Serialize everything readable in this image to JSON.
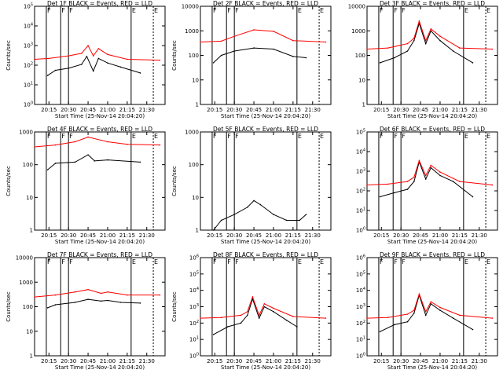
{
  "chart_data": [
    {
      "type": "line",
      "title": "Det 1F BLACK = Events, RED = LLD",
      "ylabel": "Counts/sec",
      "xlabel": "Start Time (25-Nov-14 20:04:20)",
      "x_ticks": [
        "20:15",
        "20:30",
        "20:45",
        "21:00",
        "21:15",
        "21:30"
      ],
      "y_scale": "log",
      "ylim": [
        1,
        100000
      ],
      "y_ticks": [
        "10^0",
        "10^1",
        "10^2",
        "10^3",
        "10^4",
        "10^5"
      ],
      "flags": [
        {
          "label": "F",
          "time": "20:13"
        },
        {
          "label": "F",
          "time": "20:24"
        },
        {
          "label": "F",
          "time": "20:30"
        },
        {
          "label": "E",
          "time": "21:18"
        },
        {
          "label": "E",
          "time": "21:35"
        }
      ],
      "series": [
        {
          "name": "Events",
          "color": "#000000",
          "x": [
            "20:14",
            "20:20",
            "20:30",
            "20:40",
            "20:44",
            "20:49",
            "20:53",
            "21:00",
            "21:10",
            "21:25"
          ],
          "y": [
            30,
            55,
            70,
            110,
            280,
            50,
            220,
            130,
            80,
            40
          ]
        },
        {
          "name": "LLD",
          "color": "#ff0000",
          "x": [
            "20:04",
            "20:15",
            "20:30",
            "20:40",
            "20:45",
            "20:49",
            "20:53",
            "21:00",
            "21:15",
            "21:40"
          ],
          "y": [
            200,
            220,
            300,
            400,
            1000,
            300,
            700,
            350,
            200,
            180
          ]
        }
      ]
    },
    {
      "type": "line",
      "title": "Det 2F BLACK = Events, RED = LLD",
      "ylabel": "Counts/sec",
      "xlabel": "Start Time (25-Nov-14 20:04:20)",
      "x_ticks": [
        "20:15",
        "20:30",
        "20:45",
        "21:00",
        "21:15",
        "21:30"
      ],
      "y_scale": "log",
      "ylim": [
        1,
        10000
      ],
      "y_ticks": [
        "1",
        "10",
        "100",
        "1000",
        "10000"
      ],
      "flags": [
        {
          "label": "F",
          "time": "20:13"
        },
        {
          "label": "F",
          "time": "20:24"
        },
        {
          "label": "F",
          "time": "20:30"
        },
        {
          "label": "E",
          "time": "21:18"
        },
        {
          "label": "E",
          "time": "21:35"
        }
      ],
      "series": [
        {
          "name": "Events",
          "color": "#000000",
          "x": [
            "20:14",
            "20:20",
            "20:30",
            "20:45",
            "21:00",
            "21:15",
            "21:25"
          ],
          "y": [
            50,
            100,
            150,
            200,
            180,
            90,
            80
          ]
        },
        {
          "name": "LLD",
          "color": "#ff0000",
          "x": [
            "20:04",
            "20:20",
            "20:30",
            "20:45",
            "21:00",
            "21:15",
            "21:40"
          ],
          "y": [
            350,
            380,
            600,
            1100,
            950,
            400,
            350
          ]
        }
      ]
    },
    {
      "type": "line",
      "title": "Det 3F BLACK = Events, RED = LLD",
      "ylabel": "",
      "xlabel": "Start Time (25-Nov-14 20:04:20)",
      "x_ticks": [
        "20:15",
        "20:30",
        "20:45",
        "21:00",
        "21:15",
        "21:30"
      ],
      "y_scale": "log",
      "ylim": [
        1,
        10000
      ],
      "y_ticks": [
        "1",
        "10",
        "100",
        "1000",
        "10000"
      ],
      "flags": [
        {
          "label": "F",
          "time": "20:13"
        },
        {
          "label": "F",
          "time": "20:24"
        },
        {
          "label": "F",
          "time": "20:30"
        },
        {
          "label": "E",
          "time": "21:18"
        },
        {
          "label": "E",
          "time": "21:35"
        }
      ],
      "series": [
        {
          "name": "Events",
          "color": "#000000",
          "x": [
            "20:14",
            "20:25",
            "20:35",
            "20:40",
            "20:44",
            "20:49",
            "20:53",
            "21:00",
            "21:10",
            "21:25"
          ],
          "y": [
            50,
            80,
            150,
            400,
            2000,
            300,
            1000,
            400,
            150,
            50
          ]
        },
        {
          "name": "LLD",
          "color": "#ff0000",
          "x": [
            "20:04",
            "20:20",
            "20:35",
            "20:40",
            "20:44",
            "20:49",
            "20:53",
            "21:00",
            "21:15",
            "21:40"
          ],
          "y": [
            180,
            200,
            300,
            500,
            2500,
            400,
            1200,
            600,
            200,
            180
          ]
        }
      ]
    },
    {
      "type": "line",
      "title": "Det 4F BLACK = Events, RED = LLD",
      "ylabel": "Counts/sec",
      "xlabel": "Start Time (25-Nov-14 20:04:20)",
      "x_ticks": [
        "20:15",
        "20:30",
        "20:45",
        "21:00",
        "21:15",
        "21:30"
      ],
      "y_scale": "log",
      "ylim": [
        1,
        1000
      ],
      "y_ticks": [
        "1",
        "10",
        "100",
        "1000"
      ],
      "flags": [
        {
          "label": "F",
          "time": "20:13"
        },
        {
          "label": "F",
          "time": "20:24"
        },
        {
          "label": "F",
          "time": "20:30"
        },
        {
          "label": "E",
          "time": "21:18"
        },
        {
          "label": "E",
          "time": "21:35"
        }
      ],
      "series": [
        {
          "name": "Events",
          "color": "#000000",
          "x": [
            "20:14",
            "20:20",
            "20:35",
            "20:45",
            "20:50",
            "21:00",
            "21:25"
          ],
          "y": [
            70,
            110,
            120,
            200,
            130,
            140,
            120
          ]
        },
        {
          "name": "LLD",
          "color": "#ff0000",
          "x": [
            "20:04",
            "20:20",
            "20:35",
            "20:45",
            "21:00",
            "21:15",
            "21:40"
          ],
          "y": [
            350,
            400,
            500,
            700,
            500,
            420,
            400
          ]
        }
      ]
    },
    {
      "type": "line",
      "title": "Det 5F BLACK = Events, RED = LLD",
      "ylabel": "Counts/sec",
      "xlabel": "Start Time (25-Nov-14 20:04:20)",
      "x_ticks": [
        "20:15",
        "20:30",
        "20:45",
        "21:00",
        "21:15",
        "21:30"
      ],
      "y_scale": "log",
      "ylim": [
        1,
        1000
      ],
      "y_ticks": [
        "1",
        "10",
        "100",
        "1000"
      ],
      "flags": [
        {
          "label": "F",
          "time": "20:13"
        },
        {
          "label": "F",
          "time": "20:24"
        },
        {
          "label": "F",
          "time": "20:30"
        },
        {
          "label": "E",
          "time": "21:18"
        },
        {
          "label": "E",
          "time": "21:35"
        }
      ],
      "series": [
        {
          "name": "Events",
          "color": "#000000",
          "x": [
            "20:14",
            "20:20",
            "20:30",
            "20:40",
            "20:45",
            "20:50",
            "21:00",
            "21:10",
            "21:20",
            "21:25"
          ],
          "y": [
            1,
            2,
            3,
            5,
            8,
            6,
            3,
            2,
            2,
            3
          ]
        }
      ]
    },
    {
      "type": "line",
      "title": "Det 6F BLACK = Events, RED = LLD",
      "ylabel": "",
      "xlabel": "Start Time (25-Nov-14 20:04:20)",
      "x_ticks": [
        "20:15",
        "20:30",
        "20:45",
        "21:00",
        "21:15",
        "21:30"
      ],
      "y_scale": "log",
      "ylim": [
        1,
        100000
      ],
      "y_ticks": [
        "10^0",
        "10^1",
        "10^2",
        "10^3",
        "10^4",
        "10^5"
      ],
      "flags": [
        {
          "label": "F",
          "time": "20:13"
        },
        {
          "label": "F",
          "time": "20:24"
        },
        {
          "label": "F",
          "time": "20:30"
        },
        {
          "label": "E",
          "time": "21:18"
        },
        {
          "label": "E",
          "time": "21:35"
        }
      ],
      "series": [
        {
          "name": "Events",
          "color": "#000000",
          "x": [
            "20:14",
            "20:25",
            "20:35",
            "20:40",
            "20:44",
            "20:49",
            "20:53",
            "21:00",
            "21:10",
            "21:25"
          ],
          "y": [
            50,
            80,
            120,
            300,
            3000,
            400,
            1500,
            600,
            300,
            50
          ]
        },
        {
          "name": "LLD",
          "color": "#ff0000",
          "x": [
            "20:04",
            "20:20",
            "20:35",
            "20:40",
            "20:44",
            "20:49",
            "20:53",
            "21:00",
            "21:15",
            "21:40"
          ],
          "y": [
            200,
            220,
            300,
            500,
            3500,
            600,
            2000,
            900,
            300,
            200
          ]
        }
      ]
    },
    {
      "type": "line",
      "title": "Det 7F BLACK = Events, RED = LLD",
      "ylabel": "Counts/sec",
      "xlabel": "Start Time (25-Nov-14 20:04:20)",
      "x_ticks": [
        "20:15",
        "20:30",
        "20:45",
        "21:00",
        "21:15",
        "21:30"
      ],
      "y_scale": "log",
      "ylim": [
        1,
        10000
      ],
      "y_ticks": [
        "1",
        "10",
        "100",
        "1000",
        "10000"
      ],
      "flags": [
        {
          "label": "F",
          "time": "20:13"
        },
        {
          "label": "F",
          "time": "20:24"
        },
        {
          "label": "F",
          "time": "20:30"
        },
        {
          "label": "E",
          "time": "21:18"
        },
        {
          "label": "E",
          "time": "21:35"
        }
      ],
      "series": [
        {
          "name": "Events",
          "color": "#000000",
          "x": [
            "20:14",
            "20:20",
            "20:35",
            "20:45",
            "20:55",
            "21:00",
            "21:10",
            "21:25"
          ],
          "y": [
            90,
            120,
            150,
            200,
            170,
            180,
            150,
            140
          ]
        },
        {
          "name": "LLD",
          "color": "#ff0000",
          "x": [
            "20:04",
            "20:20",
            "20:35",
            "20:45",
            "20:55",
            "21:00",
            "21:15",
            "21:40"
          ],
          "y": [
            250,
            300,
            400,
            500,
            350,
            400,
            300,
            300
          ]
        }
      ]
    },
    {
      "type": "line",
      "title": "Det 8F BLACK = Events, RED = LLD",
      "ylabel": "Counts/sec",
      "xlabel": "Start Time (25-Nov-14 20:04:20)",
      "x_ticks": [
        "20:15",
        "20:30",
        "20:45",
        "21:00",
        "21:15",
        "21:30"
      ],
      "y_scale": "log",
      "ylim": [
        1,
        1000000
      ],
      "y_ticks": [
        "10^0",
        "10^1",
        "10^2",
        "10^3",
        "10^4",
        "10^5",
        "10^6"
      ],
      "flags": [
        {
          "label": "F",
          "time": "20:13"
        },
        {
          "label": "F",
          "time": "20:24"
        },
        {
          "label": "F",
          "time": "20:30"
        },
        {
          "label": "E",
          "time": "21:18"
        },
        {
          "label": "E",
          "time": "21:35"
        }
      ],
      "series": [
        {
          "name": "Events",
          "color": "#000000",
          "x": [
            "20:14",
            "20:25",
            "20:35",
            "20:40",
            "20:44",
            "20:49",
            "20:53",
            "21:00",
            "21:10",
            "21:18"
          ],
          "y": [
            20,
            60,
            100,
            300,
            3000,
            200,
            1000,
            500,
            150,
            60
          ]
        },
        {
          "name": "LLD",
          "color": "#ff0000",
          "x": [
            "20:04",
            "20:20",
            "20:35",
            "20:40",
            "20:44",
            "20:49",
            "20:53",
            "21:00",
            "21:15",
            "21:40"
          ],
          "y": [
            200,
            220,
            300,
            500,
            4000,
            300,
            1500,
            800,
            250,
            200
          ]
        }
      ]
    },
    {
      "type": "line",
      "title": "Det 9F BLACK = Events, RED = LLD",
      "ylabel": "",
      "xlabel": "Start Time (25-Nov-14 20:04:20)",
      "x_ticks": [
        "20:15",
        "20:30",
        "20:45",
        "21:00",
        "21:15",
        "21:30"
      ],
      "y_scale": "log",
      "ylim": [
        1,
        1000000
      ],
      "y_ticks": [
        "10^0",
        "10^1",
        "10^2",
        "10^3",
        "10^4",
        "10^5",
        "10^6"
      ],
      "flags": [
        {
          "label": "F",
          "time": "20:13"
        },
        {
          "label": "F",
          "time": "20:24"
        },
        {
          "label": "F",
          "time": "20:30"
        },
        {
          "label": "E",
          "time": "21:18"
        },
        {
          "label": "E",
          "time": "21:35"
        }
      ],
      "series": [
        {
          "name": "Events",
          "color": "#000000",
          "x": [
            "20:14",
            "20:25",
            "20:35",
            "20:40",
            "20:44",
            "20:49",
            "20:53",
            "21:00",
            "21:10",
            "21:25"
          ],
          "y": [
            30,
            80,
            120,
            400,
            5000,
            300,
            1500,
            600,
            200,
            40
          ]
        },
        {
          "name": "LLD",
          "color": "#ff0000",
          "x": [
            "20:04",
            "20:20",
            "20:35",
            "20:40",
            "20:44",
            "20:49",
            "20:53",
            "21:00",
            "21:15",
            "21:40"
          ],
          "y": [
            200,
            220,
            350,
            600,
            6000,
            500,
            2000,
            900,
            300,
            200
          ]
        }
      ]
    }
  ]
}
